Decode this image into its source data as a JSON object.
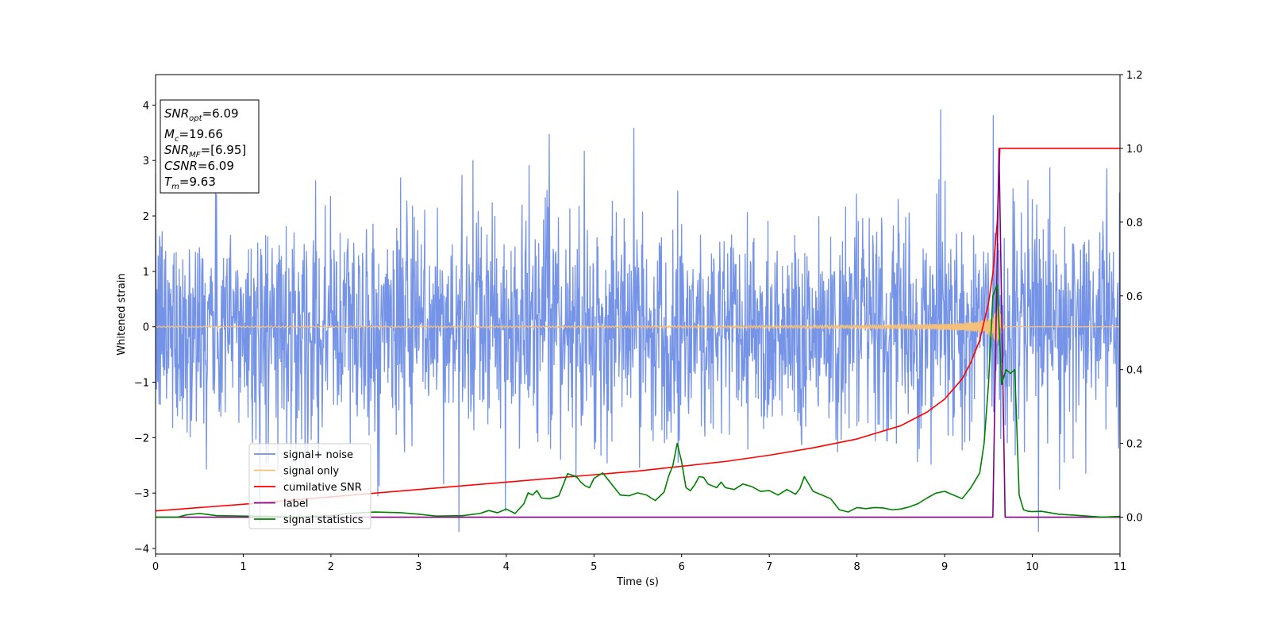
{
  "chart_data": {
    "type": "line",
    "xlabel": "Time (s)",
    "ylabel": "Whitened strain",
    "xlim": [
      0,
      11
    ],
    "ylim": [
      -4.1,
      4.55
    ],
    "y2lim": [
      -0.1,
      1.2
    ],
    "xticks": [
      "0",
      "1",
      "2",
      "3",
      "4",
      "5",
      "6",
      "7",
      "8",
      "9",
      "10",
      "11"
    ],
    "yticks": [
      "−4",
      "−3",
      "−2",
      "−1",
      "0",
      "1",
      "2",
      "3",
      "4"
    ],
    "y2ticks": [
      "0.0",
      "0.2",
      "0.4",
      "0.6",
      "0.8",
      "1.0",
      "1.2"
    ],
    "grid": false,
    "legend_position": "lower-left",
    "info_box": {
      "lines": [
        {
          "name": "SNR",
          "sub": "opt",
          "value": "=6.09"
        },
        {
          "name": "M",
          "sub": "c",
          "value": "=19.66"
        },
        {
          "name": "SNR",
          "sub": "MF",
          "value": "=[6.95]"
        },
        {
          "name": "CSNR",
          "sub": "",
          "value": "=6.09"
        },
        {
          "name": "T",
          "sub": "m",
          "value": "=9.63"
        }
      ]
    },
    "series": [
      {
        "name": "signal+ noise",
        "axis": "left",
        "color": "#6f8ee6",
        "kind": "noise",
        "noise_std": 1.0,
        "t_range": [
          0,
          11
        ],
        "samples": 2200
      },
      {
        "name": "signal only",
        "axis": "left",
        "color": "#f4c07a",
        "kind": "chirp",
        "t_merge": 9.63,
        "peak_amplitude": 0.4
      },
      {
        "name": "cumilative SNR",
        "axis": "right",
        "color": "#ff0000",
        "x": [
          0,
          1,
          2,
          3,
          4,
          5,
          5.5,
          6,
          6.5,
          7,
          7.5,
          8,
          8.5,
          8.8,
          9.0,
          9.2,
          9.3,
          9.4,
          9.5,
          9.55,
          9.6,
          9.63,
          11
        ],
        "y": [
          0.017,
          0.035,
          0.055,
          0.075,
          0.095,
          0.115,
          0.125,
          0.138,
          0.151,
          0.168,
          0.188,
          0.212,
          0.248,
          0.285,
          0.32,
          0.375,
          0.42,
          0.48,
          0.58,
          0.66,
          0.8,
          1.0,
          1.0
        ]
      },
      {
        "name": "label",
        "axis": "right",
        "color": "#800080",
        "x": [
          0,
          9.55,
          9.62,
          9.69,
          11
        ],
        "y": [
          0,
          0,
          1,
          0,
          0
        ]
      },
      {
        "name": "signal statistics",
        "axis": "right",
        "color": "#008000",
        "x": [
          0,
          0.25,
          0.35,
          0.5,
          0.7,
          1.0,
          1.3,
          1.6,
          2.0,
          2.2,
          2.5,
          2.8,
          3.0,
          3.2,
          3.5,
          3.7,
          3.8,
          3.9,
          4.0,
          4.1,
          4.2,
          4.25,
          4.3,
          4.35,
          4.4,
          4.5,
          4.6,
          4.7,
          4.8,
          4.85,
          4.9,
          4.95,
          5.0,
          5.1,
          5.2,
          5.3,
          5.4,
          5.5,
          5.6,
          5.7,
          5.8,
          5.85,
          5.9,
          5.95,
          6.0,
          6.05,
          6.1,
          6.15,
          6.2,
          6.25,
          6.3,
          6.35,
          6.4,
          6.45,
          6.5,
          6.6,
          6.7,
          6.8,
          6.9,
          7.0,
          7.1,
          7.2,
          7.3,
          7.35,
          7.4,
          7.5,
          7.6,
          7.7,
          7.8,
          7.9,
          8.0,
          8.1,
          8.2,
          8.3,
          8.4,
          8.5,
          8.6,
          8.7,
          8.8,
          8.9,
          9.0,
          9.1,
          9.2,
          9.3,
          9.4,
          9.45,
          9.5,
          9.55,
          9.6,
          9.65,
          9.7,
          9.75,
          9.8,
          9.85,
          9.9,
          9.95,
          10.0,
          10.1,
          10.2,
          10.3,
          10.5,
          10.8,
          11.0
        ],
        "y": [
          0.0,
          0.0,
          0.006,
          0.01,
          0.004,
          0.003,
          0.002,
          0.0,
          0.004,
          0.01,
          0.014,
          0.012,
          0.008,
          0.003,
          0.004,
          0.01,
          0.018,
          0.012,
          0.022,
          0.01,
          0.036,
          0.066,
          0.06,
          0.072,
          0.052,
          0.05,
          0.058,
          0.118,
          0.11,
          0.095,
          0.085,
          0.08,
          0.105,
          0.12,
          0.09,
          0.06,
          0.058,
          0.066,
          0.06,
          0.045,
          0.068,
          0.11,
          0.14,
          0.2,
          0.15,
          0.08,
          0.072,
          0.088,
          0.11,
          0.108,
          0.09,
          0.085,
          0.08,
          0.095,
          0.08,
          0.075,
          0.09,
          0.083,
          0.07,
          0.072,
          0.06,
          0.075,
          0.062,
          0.078,
          0.11,
          0.07,
          0.06,
          0.05,
          0.02,
          0.014,
          0.026,
          0.023,
          0.026,
          0.025,
          0.02,
          0.022,
          0.028,
          0.037,
          0.052,
          0.065,
          0.07,
          0.06,
          0.05,
          0.08,
          0.12,
          0.2,
          0.36,
          0.6,
          0.63,
          0.36,
          0.4,
          0.39,
          0.4,
          0.06,
          0.02,
          0.016,
          0.015,
          0.016,
          0.012,
          0.008,
          0.005,
          0.0,
          0.002
        ]
      }
    ]
  }
}
